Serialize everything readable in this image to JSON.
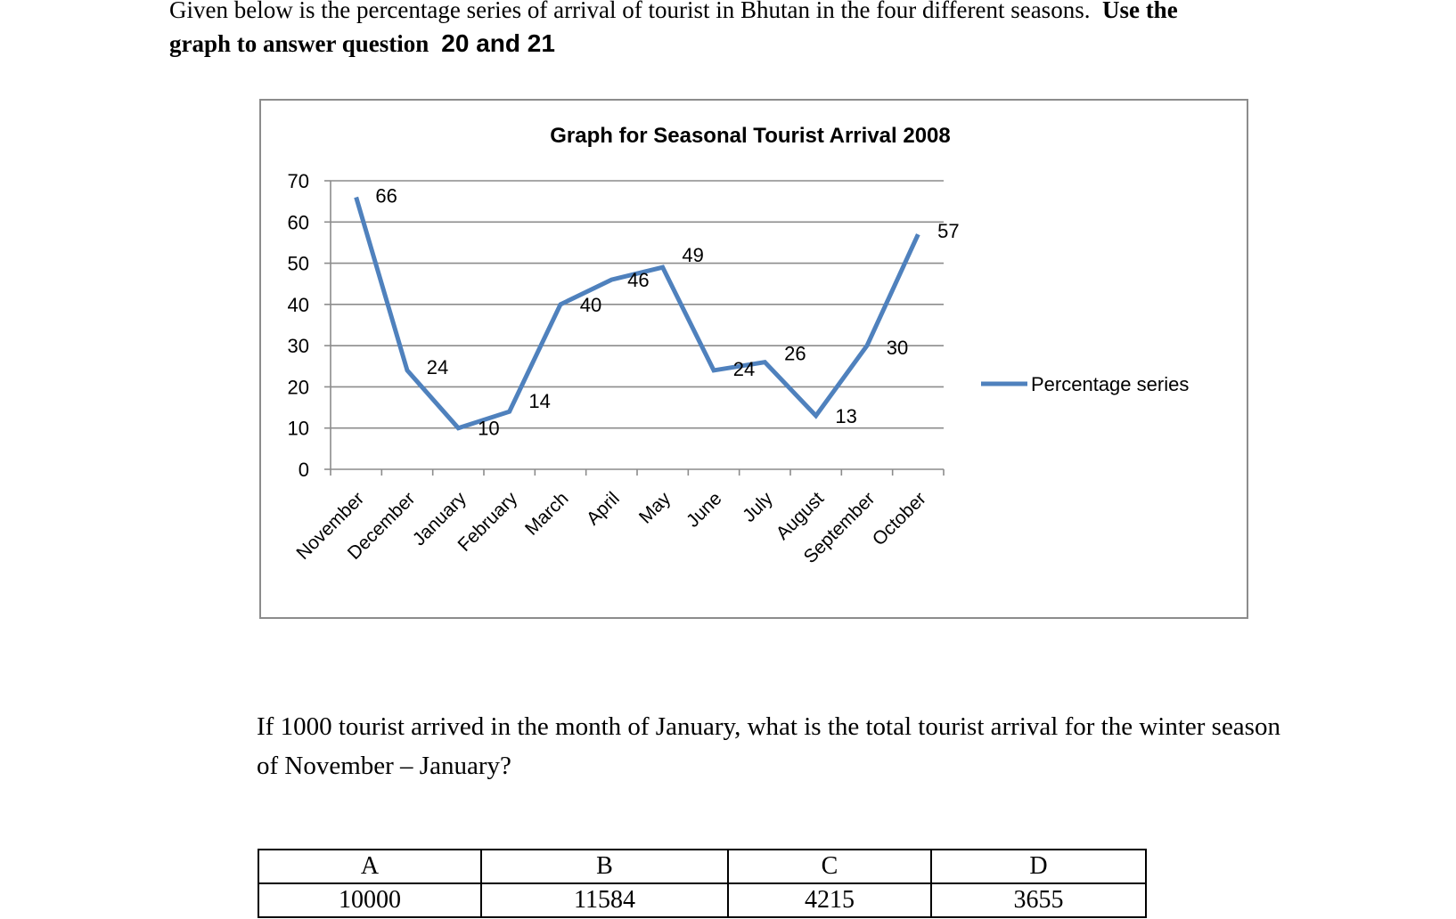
{
  "intro": {
    "line1_plain": "Given below is the percentage series of arrival of tourist in Bhutan in the four different seasons.",
    "line1_bold": "Use the",
    "line2_bold": "graph to answer question",
    "question_numbers": "20 and 21"
  },
  "question": {
    "text": "If 1000 tourist arrived in the month of January, what is the total tourist arrival for the winter season of November – January?"
  },
  "options": {
    "labels": [
      "A",
      "B",
      "C",
      "D"
    ],
    "values": [
      "10000",
      "11584",
      "4215",
      "3655"
    ]
  },
  "chart_data": {
    "type": "line",
    "title": "Graph for Seasonal Tourist Arrival 2008",
    "xlabel": "",
    "ylabel": "",
    "categories": [
      "November",
      "December",
      "January",
      "February",
      "March",
      "April",
      "May",
      "June",
      "July",
      "August",
      "September",
      "October"
    ],
    "series": [
      {
        "name": "Percentage series",
        "values": [
          66,
          24,
          10,
          14,
          40,
          46,
          49,
          24,
          26,
          13,
          30,
          57
        ],
        "color": "#4f81bd"
      }
    ],
    "ylim": [
      0,
      70
    ],
    "yticks": [
      0,
      10,
      20,
      30,
      40,
      50,
      60,
      70
    ],
    "grid": true,
    "legend": "right",
    "data_labels": true
  }
}
